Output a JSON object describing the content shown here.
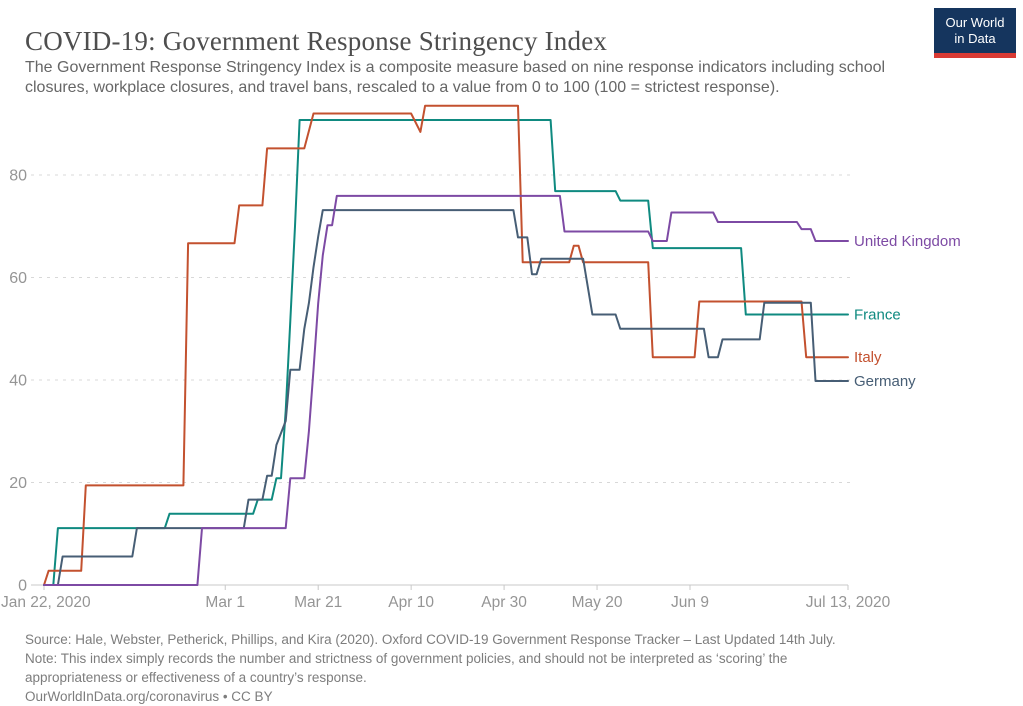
{
  "header": {
    "title": "COVID-19: Government Response Stringency Index",
    "subtitle": "The Government Response Stringency Index is a composite measure based on nine response indicators including school closures, workplace closures, and travel bans, rescaled to a value from 0 to 100 (100 = strictest response).",
    "logo": {
      "line1": "Our World",
      "line2": "in Data"
    }
  },
  "footer": {
    "source": "Source: Hale, Webster, Petherick, Phillips, and Kira (2020). Oxford COVID-19 Government Response Tracker – Last Updated 14th July.",
    "note_line1": "Note: This index simply records the number and strictness of government policies, and should not be interpreted as ‘scoring’ the",
    "note_line2": "appropriateness or effectiveness of a country’s response.",
    "link_line": "OurWorldInData.org/coronavirus • CC BY"
  },
  "colors": {
    "axis_text": "#959595",
    "gridline": "#d8d8d8",
    "axis_line": "#c8c8c8",
    "logo_bg": "#15355e",
    "logo_red": "#d93a34"
  },
  "chart_data": {
    "type": "line",
    "title": "COVID-19: Government Response Stringency Index",
    "xlabel": "",
    "ylabel": "",
    "ylim": [
      0,
      100
    ],
    "grid": "horizontal-dashed",
    "legend_position": "right-of-line-ends",
    "x_axis": {
      "start_label": "Jan 22, 2020",
      "end_label": "Jul 13, 2020",
      "ticks": [
        {
          "label": "Jan 22, 2020",
          "day": 0
        },
        {
          "label": "Mar 1",
          "day": 39
        },
        {
          "label": "Mar 21",
          "day": 59
        },
        {
          "label": "Apr 10",
          "day": 79
        },
        {
          "label": "Apr 30",
          "day": 99
        },
        {
          "label": "May 20",
          "day": 119
        },
        {
          "label": "Jun 9",
          "day": 139
        },
        {
          "label": "Jul 13, 2020",
          "day": 173
        }
      ]
    },
    "y_axis": {
      "ticks": [
        0,
        20,
        40,
        60,
        80
      ]
    },
    "series": [
      {
        "name": "France",
        "color": "#0f8a80",
        "points": [
          [
            0,
            0
          ],
          [
            2,
            0
          ],
          [
            3,
            11.11
          ],
          [
            26,
            11.11
          ],
          [
            27,
            13.89
          ],
          [
            45,
            13.89
          ],
          [
            46,
            16.67
          ],
          [
            49,
            16.67
          ],
          [
            50,
            20.83
          ],
          [
            51,
            20.83
          ],
          [
            52,
            34
          ],
          [
            53,
            51.5
          ],
          [
            54,
            70
          ],
          [
            55,
            90.74
          ],
          [
            109,
            90.74
          ],
          [
            110,
            76.85
          ],
          [
            123,
            76.85
          ],
          [
            124,
            75
          ],
          [
            130,
            75
          ],
          [
            131,
            65.74
          ],
          [
            150,
            65.74
          ],
          [
            151,
            52.78
          ],
          [
            173,
            52.78
          ]
        ]
      },
      {
        "name": "Italy",
        "color": "#c3512f",
        "points": [
          [
            0,
            0
          ],
          [
            1,
            2.78
          ],
          [
            8,
            2.78
          ],
          [
            9,
            19.44
          ],
          [
            30,
            19.44
          ],
          [
            31,
            66.67
          ],
          [
            41,
            66.67
          ],
          [
            42,
            74.07
          ],
          [
            47,
            74.07
          ],
          [
            48,
            85.19
          ],
          [
            56,
            85.19
          ],
          [
            58,
            92.0
          ],
          [
            79,
            92.0
          ],
          [
            81,
            88.4
          ],
          [
            82,
            93.52
          ],
          [
            102,
            93.52
          ],
          [
            103,
            62.96
          ],
          [
            113,
            62.96
          ],
          [
            114,
            66.2
          ],
          [
            115,
            66.2
          ],
          [
            116,
            62.96
          ],
          [
            130,
            62.96
          ],
          [
            131,
            44.44
          ],
          [
            140,
            44.44
          ],
          [
            141,
            55.32
          ],
          [
            163,
            55.32
          ],
          [
            164,
            44.44
          ],
          [
            173,
            44.44
          ]
        ]
      },
      {
        "name": "Germany",
        "color": "#475e75",
        "points": [
          [
            0,
            0
          ],
          [
            3,
            0
          ],
          [
            4,
            5.56
          ],
          [
            19,
            5.56
          ],
          [
            20,
            11.11
          ],
          [
            43,
            11.11
          ],
          [
            44,
            16.67
          ],
          [
            47,
            16.67
          ],
          [
            48,
            21.3
          ],
          [
            49,
            21.3
          ],
          [
            50,
            27.31
          ],
          [
            52,
            32
          ],
          [
            53,
            42
          ],
          [
            55,
            42
          ],
          [
            56,
            50
          ],
          [
            57,
            55
          ],
          [
            58,
            62
          ],
          [
            59,
            68
          ],
          [
            60,
            73.15
          ],
          [
            101,
            73.15
          ],
          [
            102,
            67.82
          ],
          [
            104,
            67.82
          ],
          [
            105,
            60.65
          ],
          [
            106,
            60.65
          ],
          [
            107,
            63.66
          ],
          [
            116,
            63.66
          ],
          [
            118,
            52.78
          ],
          [
            123,
            52.78
          ],
          [
            124,
            50.0
          ],
          [
            142,
            50.0
          ],
          [
            143,
            44.44
          ],
          [
            145,
            44.44
          ],
          [
            146,
            47.92
          ],
          [
            154,
            47.92
          ],
          [
            155,
            55.09
          ],
          [
            165,
            55.09
          ],
          [
            166,
            39.81
          ],
          [
            173,
            39.81
          ]
        ]
      },
      {
        "name": "United Kingdom",
        "color": "#7d4aa4",
        "points": [
          [
            0,
            0
          ],
          [
            33,
            0
          ],
          [
            34,
            11.11
          ],
          [
            52,
            11.11
          ],
          [
            53,
            20.83
          ],
          [
            56,
            20.83
          ],
          [
            57,
            30
          ],
          [
            58,
            42
          ],
          [
            59,
            55
          ],
          [
            60,
            64.35
          ],
          [
            61,
            70.2
          ],
          [
            62,
            70.2
          ],
          [
            63,
            75.93
          ],
          [
            111,
            75.93
          ],
          [
            112,
            68.98
          ],
          [
            130,
            68.98
          ],
          [
            131,
            67.13
          ],
          [
            134,
            67.13
          ],
          [
            135,
            72.69
          ],
          [
            144,
            72.69
          ],
          [
            145,
            70.83
          ],
          [
            162,
            70.83
          ],
          [
            163,
            69.44
          ],
          [
            165,
            69.44
          ],
          [
            166,
            67.13
          ],
          [
            173,
            67.13
          ]
        ]
      }
    ]
  }
}
